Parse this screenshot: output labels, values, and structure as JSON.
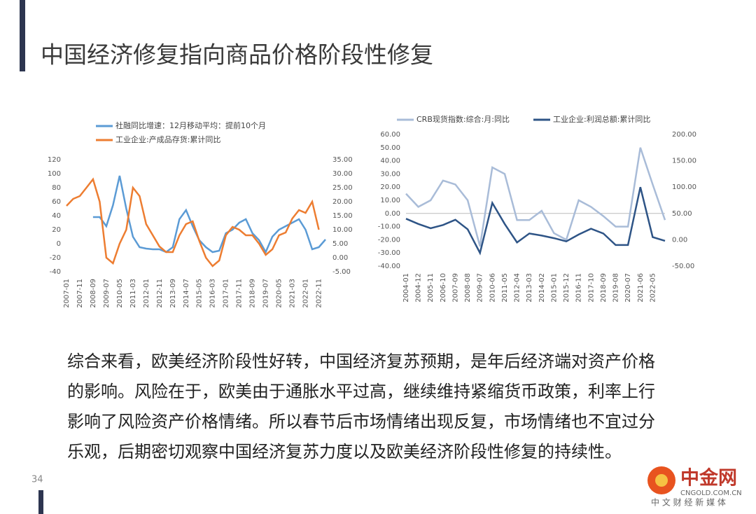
{
  "header": {
    "title": "中国经济修复指向商品价格阶段性修复"
  },
  "chart_data": [
    {
      "type": "line",
      "categories": [
        "2007-01",
        null,
        "2007-11",
        null,
        "2008-09",
        null,
        "2009-07",
        null,
        "2010-05",
        null,
        "2011-03",
        null,
        "2012-01",
        null,
        "2012-11",
        null,
        "2013-09",
        null,
        "2014-07",
        null,
        "2015-05",
        null,
        "2016-03",
        null,
        "2017-01",
        null,
        "2017-11",
        null,
        "2018-09",
        null,
        "2019-07",
        null,
        "2020-05",
        null,
        "2021-03",
        null,
        "2022-01",
        null,
        "2022-11",
        null
      ],
      "series": [
        {
          "name": "社融同比增速：12月移动平均：提前10个月",
          "color": "#5b9bd5",
          "values": [
            null,
            null,
            null,
            null,
            38,
            38,
            25,
            55,
            97,
            50,
            10,
            -5,
            -7,
            -8,
            -8,
            -12,
            -5,
            35,
            48,
            25,
            5,
            -5,
            -12,
            -10,
            15,
            20,
            30,
            35,
            15,
            5,
            -12,
            10,
            20,
            25,
            30,
            35,
            20,
            -8,
            -5,
            6
          ]
        },
        {
          "name": "工业企业:产成品存货:累计同比",
          "color": "#ed7d31",
          "axis": "y2",
          "values": [
            18.5,
            21,
            22,
            25,
            28,
            20,
            0,
            -2,
            5,
            10,
            25,
            22,
            12,
            8,
            4,
            2,
            2,
            8,
            12,
            13,
            6,
            0,
            -3,
            -1,
            8,
            11,
            10,
            8,
            8,
            5,
            1,
            3,
            8,
            9,
            14,
            17,
            16,
            20,
            10,
            null
          ]
        }
      ],
      "ylim": [
        -40,
        120
      ],
      "yticks": [
        -40,
        -20,
        0,
        20,
        40,
        60,
        80,
        100,
        120
      ],
      "y2lim": [
        -5,
        35
      ],
      "y2ticks": [
        {
          "value": -5,
          "label": "-5.00"
        },
        {
          "value": 0,
          "label": "0.00"
        },
        {
          "value": 5,
          "label": "5.00"
        },
        {
          "value": 10,
          "label": "10.00"
        },
        {
          "value": 15,
          "label": "15.00"
        },
        {
          "value": 20,
          "label": "20.00"
        },
        {
          "value": 25,
          "label": "25.00"
        },
        {
          "value": 30,
          "label": "30.00"
        },
        {
          "value": 35,
          "label": "35.00"
        }
      ]
    },
    {
      "type": "line",
      "categories": [
        "2004-01",
        "2004-12",
        "2005-11",
        "2006-10",
        "2007-09",
        "2008-08",
        "2009-07",
        "2010-06",
        "2011-05",
        "2012-04",
        "2013-03",
        "2014-02",
        "2015-01",
        "2015-12",
        "2016-11",
        "2017-10",
        "2018-09",
        "2019-08",
        "2020-07",
        "2021-06",
        "2022-05",
        null
      ],
      "series": [
        {
          "name": "CRB现货指数:综合:月:同比",
          "color": "#a9bcd8",
          "values": [
            15,
            5,
            10,
            25,
            22,
            10,
            -25,
            35,
            30,
            -5,
            -5,
            2,
            -15,
            -20,
            10,
            5,
            -2,
            -10,
            -10,
            50,
            22,
            -5
          ]
        },
        {
          "name": "工业企业:利润总额:累计同比",
          "color": "#2e5486",
          "axis": "y2",
          "values": [
            40,
            30,
            22,
            28,
            38,
            20,
            -25,
            70,
            30,
            -5,
            12,
            8,
            3,
            -3,
            10,
            21,
            12,
            -10,
            -10,
            100,
            5,
            -2
          ]
        }
      ],
      "ylim": [
        -40,
        60
      ],
      "yticks": [
        {
          "value": -40,
          "label": "-40.00"
        },
        {
          "value": -30,
          "label": "-30.00"
        },
        {
          "value": -20,
          "label": "-20.00"
        },
        {
          "value": -10,
          "label": "-10.00"
        },
        {
          "value": 0,
          "label": "0.00"
        },
        {
          "value": 10,
          "label": "10.00"
        },
        {
          "value": 20,
          "label": "20.00"
        },
        {
          "value": 30,
          "label": "30.00"
        },
        {
          "value": 40,
          "label": "40.00"
        },
        {
          "value": 50,
          "label": "50.00"
        },
        {
          "value": 60,
          "label": "60.00"
        }
      ],
      "y2lim": [
        -50,
        200
      ],
      "y2ticks": [
        {
          "value": -50,
          "label": "-50.00"
        },
        {
          "value": 0,
          "label": "0.00"
        },
        {
          "value": 50,
          "label": "50.00"
        },
        {
          "value": 100,
          "label": "100.00"
        },
        {
          "value": 150,
          "label": "150.00"
        },
        {
          "value": 200,
          "label": "200.00"
        }
      ],
      "zero_line": true
    }
  ],
  "body": {
    "lines": [
      "综合来看，欧美经济阶段性好转，中国经济复苏预期，是年后经济端对资产价格",
      "的影响。风险在于，欧美由于通胀水平过高，继续维持紧缩货币政策，利率上行",
      "影响了风险资产价格情绪。所以春节后市场情绪出现反复，市场情绪也不宜过分",
      "乐观，后期密切观察中国经济复苏力度以及欧美经济阶段性修复的持续性。"
    ]
  },
  "footer": {
    "page_number": "34",
    "logo": "中金网",
    "logo_url": "CNGOLD.COM.CN",
    "logo_tagline": "中 文 财 经 新 媒 体"
  }
}
